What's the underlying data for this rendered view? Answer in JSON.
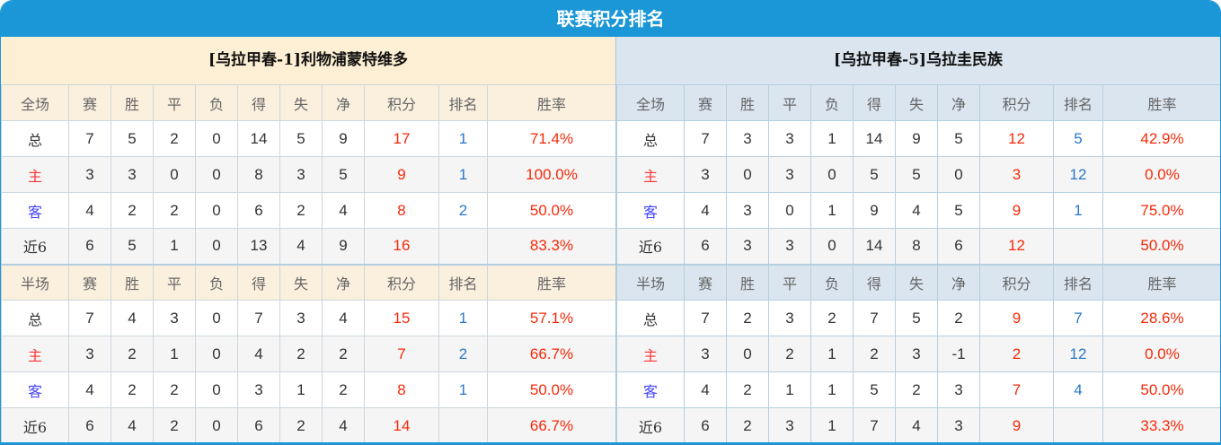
{
  "title": "联赛积分排名",
  "columns": [
    "赛",
    "胜",
    "平",
    "负",
    "得",
    "失",
    "净",
    "积分",
    "排名",
    "胜率"
  ],
  "colors": {
    "title_bar": "#1b96d6",
    "points": "#f52a0a",
    "rank": "#2a78c8",
    "home_label": "#f33333",
    "away_label": "#4444ff"
  },
  "teams": [
    {
      "name": "[乌拉甲春-1]利物浦蒙特维多",
      "sections": [
        {
          "label": "全场",
          "rows": [
            {
              "label": "总",
              "values": [
                "7",
                "5",
                "2",
                "0",
                "14",
                "5",
                "9",
                "17",
                "1",
                "71.4%"
              ]
            },
            {
              "label": "主",
              "values": [
                "3",
                "3",
                "0",
                "0",
                "8",
                "3",
                "5",
                "9",
                "1",
                "100.0%"
              ]
            },
            {
              "label": "客",
              "values": [
                "4",
                "2",
                "2",
                "0",
                "6",
                "2",
                "4",
                "8",
                "2",
                "50.0%"
              ]
            },
            {
              "label": "近6",
              "values": [
                "6",
                "5",
                "1",
                "0",
                "13",
                "4",
                "9",
                "16",
                "",
                "83.3%"
              ]
            }
          ]
        },
        {
          "label": "半场",
          "rows": [
            {
              "label": "总",
              "values": [
                "7",
                "4",
                "3",
                "0",
                "7",
                "3",
                "4",
                "15",
                "1",
                "57.1%"
              ]
            },
            {
              "label": "主",
              "values": [
                "3",
                "2",
                "1",
                "0",
                "4",
                "2",
                "2",
                "7",
                "2",
                "66.7%"
              ]
            },
            {
              "label": "客",
              "values": [
                "4",
                "2",
                "2",
                "0",
                "3",
                "1",
                "2",
                "8",
                "1",
                "50.0%"
              ]
            },
            {
              "label": "近6",
              "values": [
                "6",
                "4",
                "2",
                "0",
                "6",
                "2",
                "4",
                "14",
                "",
                "66.7%"
              ]
            }
          ]
        }
      ]
    },
    {
      "name": "[乌拉甲春-5]乌拉圭民族",
      "sections": [
        {
          "label": "全场",
          "rows": [
            {
              "label": "总",
              "values": [
                "7",
                "3",
                "3",
                "1",
                "14",
                "9",
                "5",
                "12",
                "5",
                "42.9%"
              ]
            },
            {
              "label": "主",
              "values": [
                "3",
                "0",
                "3",
                "0",
                "5",
                "5",
                "0",
                "3",
                "12",
                "0.0%"
              ]
            },
            {
              "label": "客",
              "values": [
                "4",
                "3",
                "0",
                "1",
                "9",
                "4",
                "5",
                "9",
                "1",
                "75.0%"
              ]
            },
            {
              "label": "近6",
              "values": [
                "6",
                "3",
                "3",
                "0",
                "14",
                "8",
                "6",
                "12",
                "",
                "50.0%"
              ]
            }
          ]
        },
        {
          "label": "半场",
          "rows": [
            {
              "label": "总",
              "values": [
                "7",
                "2",
                "3",
                "2",
                "7",
                "5",
                "2",
                "9",
                "7",
                "28.6%"
              ]
            },
            {
              "label": "主",
              "values": [
                "3",
                "0",
                "2",
                "1",
                "2",
                "3",
                "-1",
                "2",
                "12",
                "0.0%"
              ]
            },
            {
              "label": "客",
              "values": [
                "4",
                "2",
                "1",
                "1",
                "5",
                "2",
                "3",
                "7",
                "4",
                "50.0%"
              ]
            },
            {
              "label": "近6",
              "values": [
                "6",
                "2",
                "3",
                "1",
                "7",
                "4",
                "3",
                "9",
                "",
                "33.3%"
              ]
            }
          ]
        }
      ]
    }
  ]
}
